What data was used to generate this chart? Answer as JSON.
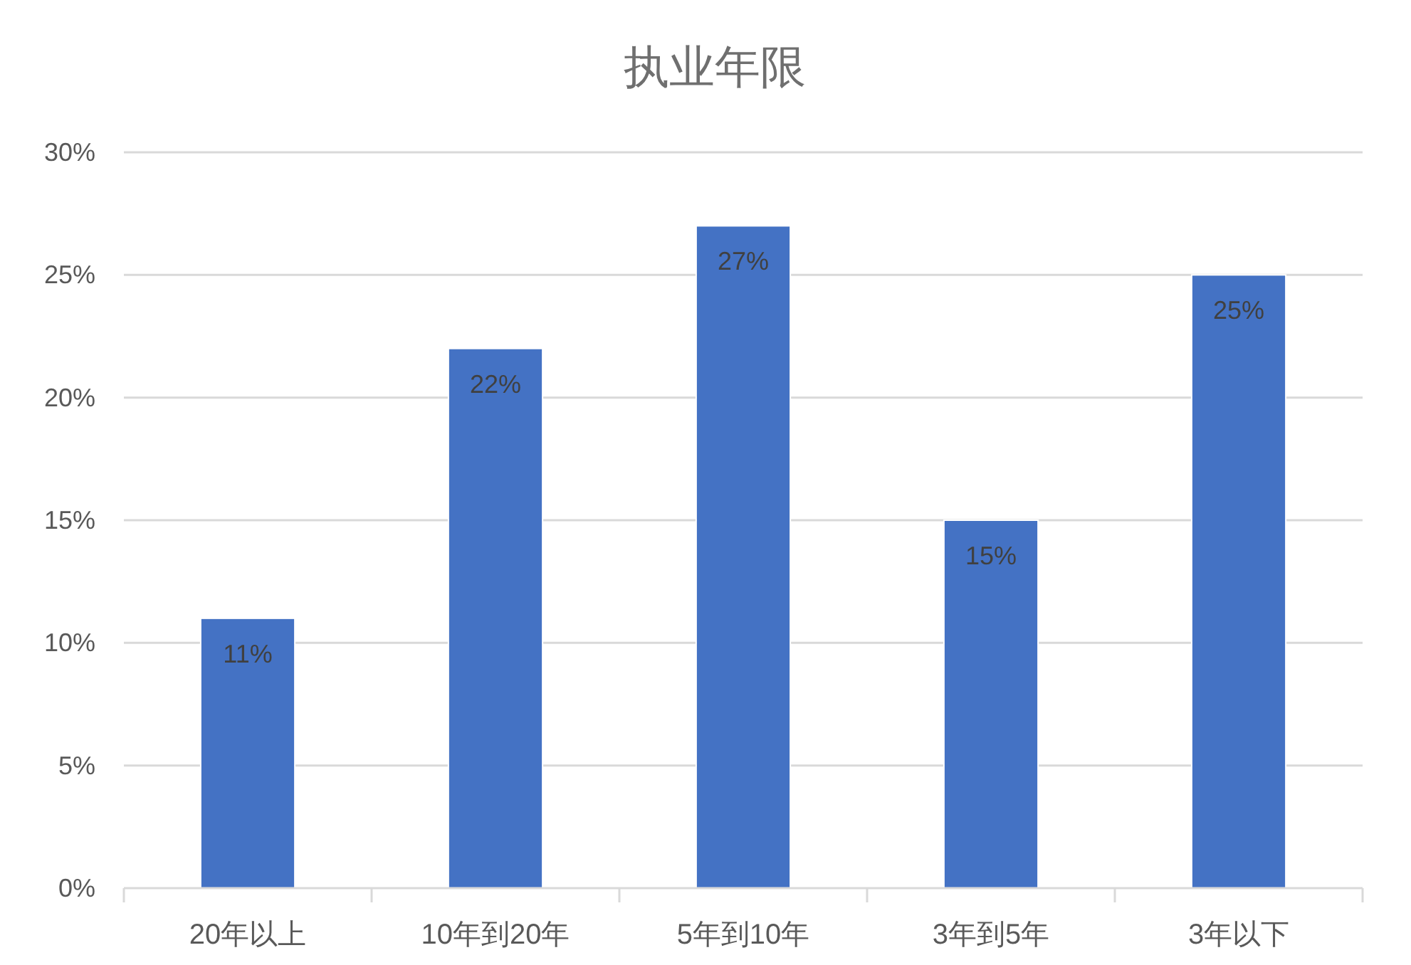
{
  "chart_data": {
    "type": "bar",
    "title": "执业年限",
    "categories": [
      "20年以上",
      "10年到20年",
      "5年到10年",
      "3年到5年",
      "3年以下"
    ],
    "values": [
      11,
      22,
      27,
      15,
      25
    ],
    "value_labels": [
      "11%",
      "22%",
      "27%",
      "15%",
      "25%"
    ],
    "color": "#4472c4",
    "ylim": [
      0,
      30
    ],
    "yticks": [
      {
        "value": 0,
        "label": "0%"
      },
      {
        "value": 5,
        "label": "5%"
      },
      {
        "value": 10,
        "label": "10%"
      },
      {
        "value": 15,
        "label": "15%"
      },
      {
        "value": 20,
        "label": "20%"
      },
      {
        "value": 25,
        "label": "25%"
      },
      {
        "value": 30,
        "label": "30%"
      }
    ],
    "grid": "y"
  }
}
